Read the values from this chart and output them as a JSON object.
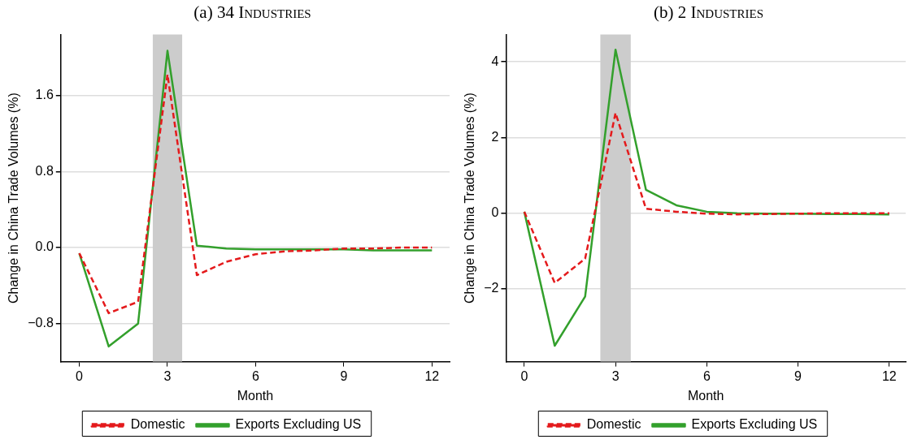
{
  "chart_data": [
    {
      "type": "line",
      "title": "(a) 34 Industries",
      "xlabel": "Month",
      "ylabel": "Change in China Trade Volumes (%)",
      "x": [
        0,
        1,
        2,
        3,
        4,
        5,
        6,
        7,
        8,
        9,
        10,
        11,
        12
      ],
      "series": [
        {
          "name": "Domestic",
          "color": "#e41a1c",
          "line_style": "dashed",
          "values": [
            -0.06,
            -0.69,
            -0.57,
            1.82,
            -0.29,
            -0.15,
            -0.07,
            -0.04,
            -0.03,
            -0.01,
            -0.01,
            0,
            0
          ]
        },
        {
          "name": "Exports Excluding US",
          "color": "#33a02c",
          "line_style": "solid",
          "values": [
            -0.06,
            -1.04,
            -0.8,
            2.07,
            0.02,
            -0.01,
            -0.02,
            -0.02,
            -0.02,
            -0.02,
            -0.03,
            -0.03,
            -0.03
          ]
        }
      ],
      "xlim": [
        -0.63,
        12.6
      ],
      "xticks": [
        0,
        3,
        6,
        9,
        12
      ],
      "ylim": [
        -1.2,
        2.24
      ],
      "yticks": [
        {
          "value": -0.8,
          "label": "−0.8"
        },
        {
          "value": 0,
          "label": "0.0"
        },
        0.8,
        1.6
      ],
      "bands": [
        {
          "axis": "x",
          "from": 2.5,
          "to": 3.5,
          "color": "#cccccc"
        }
      ],
      "grid": "y",
      "legend": "bottom",
      "marker": "none"
    },
    {
      "type": "line",
      "title": "(b) 2 Industries",
      "xlabel": "Month",
      "ylabel": "Change in China Trade Volumes (%)",
      "x": [
        0,
        1,
        2,
        3,
        4,
        5,
        6,
        7,
        8,
        9,
        10,
        11,
        12
      ],
      "series": [
        {
          "name": "Domestic",
          "color": "#e41a1c",
          "line_style": "dashed",
          "values": [
            0.04,
            -1.84,
            -1.2,
            2.65,
            0.12,
            0.04,
            -0.01,
            -0.03,
            -0.02,
            -0.01,
            0,
            0,
            0
          ]
        },
        {
          "name": "Exports Excluding US",
          "color": "#33a02c",
          "line_style": "solid",
          "values": [
            0.04,
            -3.5,
            -2.2,
            4.32,
            0.62,
            0.21,
            0.04,
            0,
            -0.01,
            -0.01,
            -0.02,
            -0.02,
            -0.03
          ]
        }
      ],
      "xlim": [
        -0.6,
        12.54
      ],
      "xticks": [
        0,
        3,
        6,
        9,
        12
      ],
      "ylim": [
        -3.92,
        4.72
      ],
      "yticks": [
        {
          "value": -2,
          "label": "−2"
        },
        0,
        2,
        4
      ],
      "bands": [
        {
          "axis": "x",
          "from": 2.5,
          "to": 3.5,
          "color": "#cccccc"
        }
      ],
      "grid": "y",
      "legend": "bottom",
      "marker": "none"
    }
  ]
}
